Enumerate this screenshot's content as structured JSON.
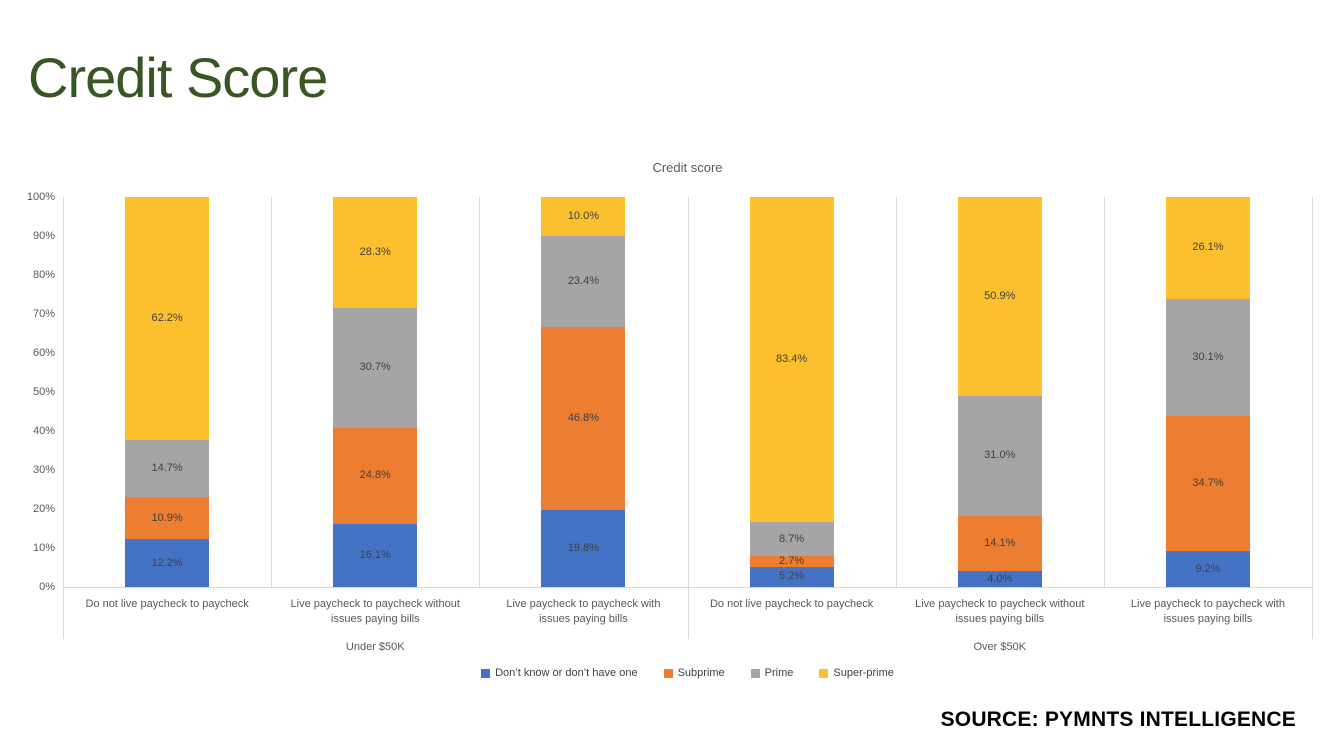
{
  "page": {
    "title": "Credit Score",
    "title_color": "#375623",
    "source": "SOURCE: PYMNTS INTELLIGENCE",
    "background": "#FFFFFF"
  },
  "chart_data": {
    "type": "bar",
    "variant": "100%-stacked-column",
    "title": "Credit score",
    "legend_position": "bottom",
    "grid": "vertical-category-separators-only",
    "ylim": [
      0,
      100
    ],
    "y_ticks": [
      "0%",
      "10%",
      "20%",
      "30%",
      "40%",
      "50%",
      "60%",
      "70%",
      "80%",
      "90%",
      "100%"
    ],
    "group_labels": [
      "Under $50K",
      "Over $50K"
    ],
    "categories": [
      {
        "label": "Do not live paycheck to paycheck",
        "group": "Under $50K"
      },
      {
        "label": "Live paycheck to paycheck without issues paying bills",
        "group": "Under $50K"
      },
      {
        "label": "Live paycheck to paycheck with issues paying bills",
        "group": "Under $50K"
      },
      {
        "label": "Do not live paycheck to paycheck",
        "group": "Over $50K"
      },
      {
        "label": "Live paycheck to paycheck without issues paying bills",
        "group": "Over $50K"
      },
      {
        "label": "Live paycheck to paycheck with issues paying bills",
        "group": "Over $50K"
      }
    ],
    "series": [
      {
        "name": "Don’t know or don’t have one",
        "color": "#4472C4",
        "values": [
          12.2,
          16.1,
          19.8,
          5.2,
          4.0,
          9.2
        ]
      },
      {
        "name": "Subprime",
        "color": "#ED7D31",
        "values": [
          10.9,
          24.8,
          46.8,
          2.7,
          14.1,
          34.7
        ]
      },
      {
        "name": "Prime",
        "color": "#A5A5A5",
        "values": [
          14.7,
          30.7,
          23.4,
          8.7,
          31.0,
          30.1
        ]
      },
      {
        "name": "Super-prime",
        "color": "#FCC02E",
        "values": [
          62.2,
          28.3,
          10.0,
          83.4,
          50.9,
          26.1
        ]
      }
    ],
    "data_label_format": "0.0%",
    "data_label_color": "#404040"
  }
}
